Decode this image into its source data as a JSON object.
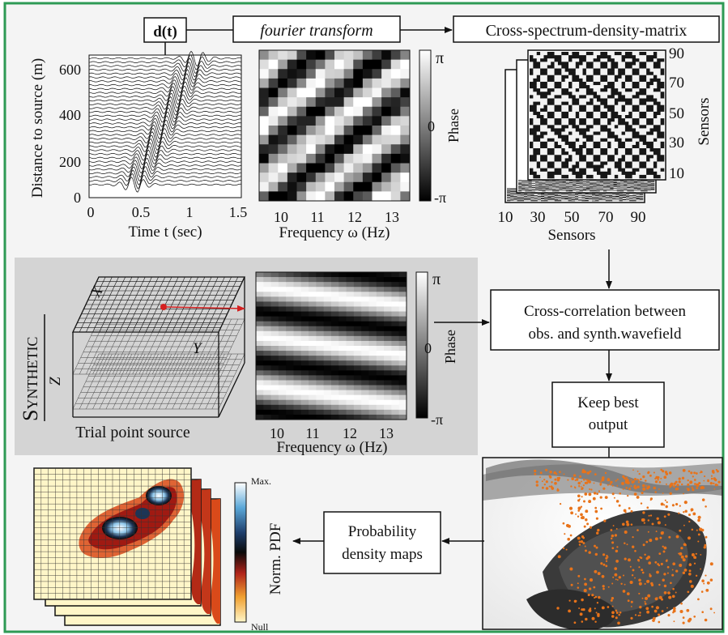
{
  "top": {
    "input_signal": "d(t)",
    "fourier_transform": "fourier transform",
    "csdm_title": "Cross-spectrum-density-matrix"
  },
  "seismogram": {
    "ylabel": "Distance to source (m)",
    "xlabel": "Time t (sec)",
    "yticks": [
      "0",
      "200",
      "400",
      "600"
    ],
    "xticks": [
      "0",
      "0.5",
      "1",
      "1.5"
    ]
  },
  "phase_observed": {
    "xlabel": "Frequency ω (Hz)",
    "xticks": [
      "10",
      "11",
      "12",
      "13"
    ],
    "colorbar_label": "Phase",
    "colorbar_ticks": [
      "π",
      "0",
      "-π"
    ]
  },
  "csdm": {
    "xlabel": "Sensors",
    "ylabel": "Sensors",
    "xticks": [
      "10",
      "30",
      "50",
      "70",
      "90"
    ],
    "yticks": [
      "90",
      "70",
      "50",
      "30",
      "10"
    ]
  },
  "synthetic": {
    "section_title": "Synthetic",
    "axis_x": "X",
    "axis_y": "Y",
    "axis_z": "Z",
    "trial_label": "Trial point source"
  },
  "phase_synthetic": {
    "xlabel": "Frequency ω (Hz)",
    "xticks": [
      "10",
      "11",
      "12",
      "13"
    ],
    "colorbar_label": "Phase",
    "colorbar_ticks": [
      "π",
      "0",
      "-π"
    ]
  },
  "steps": {
    "cross_correlation_line1": "Cross-correlation between",
    "cross_correlation_line2": "obs. and synth.wavefield",
    "keep_best_line1": "Keep best",
    "keep_best_line2": "output",
    "probability_line1": "Probability",
    "probability_line2": "density maps"
  },
  "pdf_map": {
    "colorbar_label": "Norm. PDF",
    "max_label": "Max.",
    "null_label": "Null"
  },
  "colors": {
    "border": "#2e9a55",
    "synthetic_panel": "#d4d4d4",
    "arrow_red": "#d42020",
    "scatter_orange": "#e8731a"
  }
}
